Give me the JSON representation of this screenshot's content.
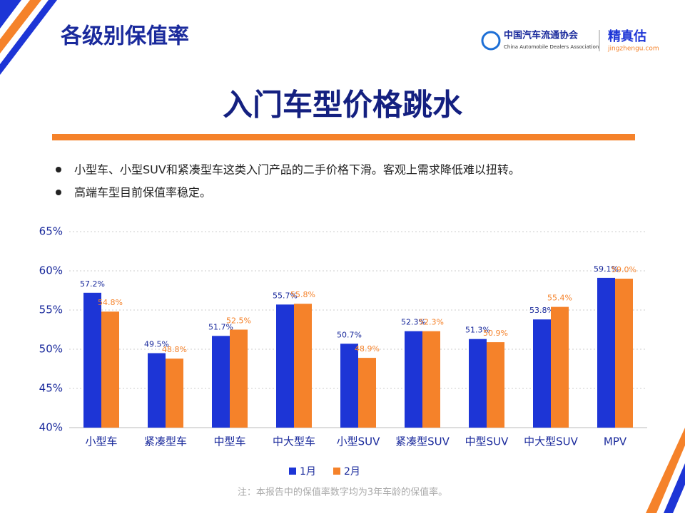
{
  "header": {
    "title": "各级别保值率",
    "logo_cn": "中国汽车流通协会",
    "logo_en": "China Automobile Dealers Association",
    "brand": "精真估",
    "brand_url": "jingzhengu.com"
  },
  "heading": "入门车型价格跳水",
  "bullets": [
    "小型车、小型SUV和紧凑型车这类入门产品的二手价格下滑。客观上需求降低难以扭转。",
    "高端车型目前保值率稳定。"
  ],
  "chart_data": {
    "type": "bar",
    "categories": [
      "小型车",
      "紧凑型车",
      "中型车",
      "中大型车",
      "小型SUV",
      "紧凑型SUV",
      "中型SUV",
      "中大型SUV",
      "MPV"
    ],
    "series": [
      {
        "name": "1月",
        "color": "#1d35d6",
        "values": [
          57.2,
          49.5,
          51.7,
          55.7,
          50.7,
          52.3,
          51.3,
          53.8,
          59.1
        ],
        "value_labels": [
          "57.2%",
          "49.5%",
          "51.7%",
          "55.7%",
          "50.7%",
          "52.3%",
          "51.3%",
          "53.8%",
          "59.1%"
        ]
      },
      {
        "name": "2月",
        "color": "#f5822a",
        "values": [
          54.8,
          48.8,
          52.5,
          55.8,
          48.9,
          52.3,
          50.9,
          55.4,
          59.0
        ],
        "value_labels": [
          "54.8%",
          "48.8%",
          "52.5%",
          "55.8%",
          "48.9%",
          "52.3%",
          "50.9%",
          "55.4%",
          "59.0%"
        ]
      }
    ],
    "ylim": [
      40,
      65
    ],
    "yticks": [
      {
        "value": 40,
        "label": "40%"
      },
      {
        "value": 45,
        "label": "45%"
      },
      {
        "value": 50,
        "label": "50%"
      },
      {
        "value": 55,
        "label": "55%"
      },
      {
        "value": 60,
        "label": "60%"
      },
      {
        "value": 65,
        "label": "65%"
      }
    ],
    "grid": true
  },
  "note": "注：本报告中的保值率数字均为3年车龄的保值率。"
}
